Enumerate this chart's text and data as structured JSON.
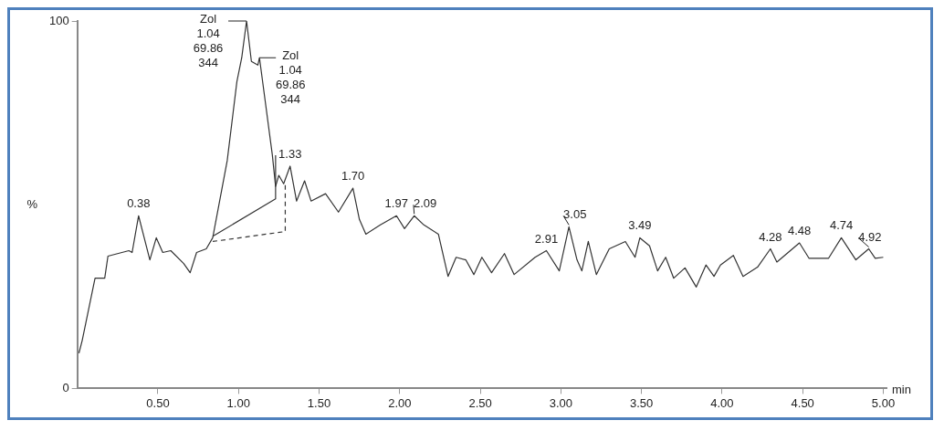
{
  "chart_data": {
    "type": "line",
    "xlabel": "min",
    "ylabel": "%",
    "xlim": [
      0,
      5.02
    ],
    "xticks": [
      {
        "value": 0.5,
        "label": "0.50"
      },
      {
        "value": 1,
        "label": "1.00"
      },
      {
        "value": 1.5,
        "label": "1.50"
      },
      {
        "value": 2,
        "label": "2.00"
      },
      {
        "value": 2.5,
        "label": "2.50"
      },
      {
        "value": 3,
        "label": "3.00"
      },
      {
        "value": 3.5,
        "label": "3.50"
      },
      {
        "value": 4,
        "label": "4.00"
      },
      {
        "value": 4.5,
        "label": "4.50"
      },
      {
        "value": 5,
        "label": "5.00"
      }
    ],
    "ylim": [
      0,
      100
    ],
    "yticks": [
      0,
      100
    ],
    "grid": false,
    "legend": false,
    "marker": "none",
    "series": [
      {
        "color": "#333333",
        "line_style": "solid",
        "x": [
          0.01,
          0.03,
          0.11,
          0.17,
          0.19,
          0.32,
          0.34,
          0.38,
          0.45,
          0.49,
          0.53,
          0.58,
          0.66,
          0.7,
          0.74,
          0.8,
          0.84,
          0.93,
          0.99,
          1.02,
          1.05,
          1.08,
          1.12,
          1.13,
          1.21,
          1.23,
          1.25,
          1.28,
          1.32,
          1.36,
          1.41,
          1.45,
          1.54,
          1.62,
          1.71,
          1.75,
          1.79,
          1.88,
          1.94,
          1.98,
          2.03,
          2.09,
          2.15,
          2.24,
          2.3,
          2.35,
          2.41,
          2.46,
          2.51,
          2.57,
          2.65,
          2.71,
          2.84,
          2.91,
          2.99,
          3.05,
          3.1,
          3.13,
          3.17,
          3.22,
          3.3,
          3.4,
          3.46,
          3.49,
          3.55,
          3.6,
          3.65,
          3.7,
          3.77,
          3.84,
          3.9,
          3.95,
          3.99,
          4.07,
          4.13,
          4.22,
          4.3,
          4.34,
          4.48,
          4.54,
          4.66,
          4.74,
          4.83,
          4.91,
          4.95,
          5.0
        ],
        "values": [
          9.6,
          13,
          30,
          30,
          36,
          37.5,
          37,
          47,
          35,
          41,
          37,
          37.5,
          34,
          31.5,
          37,
          38,
          41,
          62,
          83.5,
          90,
          100,
          89,
          88,
          90,
          63.5,
          55,
          58,
          55.7,
          60.5,
          51,
          56.5,
          51,
          53,
          48,
          54.5,
          46,
          42,
          44.5,
          46,
          47,
          43.5,
          47,
          44.5,
          42,
          30.5,
          35.7,
          35,
          31,
          35.7,
          31.5,
          36.7,
          31,
          35.7,
          37.5,
          32,
          44,
          35,
          32,
          40,
          31,
          38,
          40,
          35.7,
          41,
          38.8,
          32,
          35.7,
          30,
          32.8,
          27.6,
          33.6,
          30.5,
          33.6,
          36.2,
          30.5,
          33,
          38,
          34.4,
          39.6,
          35.4,
          35.4,
          41,
          35,
          38,
          35.4,
          35.7
        ]
      },
      {
        "color": "#333333",
        "line_style": "solid",
        "x": [
          0.84,
          1.23,
          1.23
        ],
        "values": [
          41.4,
          51.6,
          63.5
        ]
      },
      {
        "color": "#333333",
        "line_style": "dashed",
        "x": [
          0.84,
          1.29,
          1.29
        ],
        "values": [
          40,
          42.7,
          55.7
        ]
      }
    ],
    "annotations": [
      {
        "text": "0.38",
        "x": 0.38,
        "y": 47
      },
      {
        "text": "Zol\n1.04\n69.86\n344",
        "x": 1.05,
        "y": 100
      },
      {
        "text": "Zol\n1.04\n69.86\n344",
        "x": 1.13,
        "y": 90
      },
      {
        "text": "1.33",
        "x": 1.32,
        "y": 60.5
      },
      {
        "text": "1.70",
        "x": 1.71,
        "y": 54.5
      },
      {
        "text": "1.97",
        "x": 1.98,
        "y": 47
      },
      {
        "text": "2.09",
        "x": 2.09,
        "y": 47
      },
      {
        "text": "2.91",
        "x": 2.91,
        "y": 37.5
      },
      {
        "text": "3.05",
        "x": 3.05,
        "y": 44
      },
      {
        "text": "3.49",
        "x": 3.49,
        "y": 41
      },
      {
        "text": "4.28",
        "x": 4.3,
        "y": 38
      },
      {
        "text": "4.48",
        "x": 4.48,
        "y": 39.6
      },
      {
        "text": "4.74",
        "x": 4.74,
        "y": 41
      },
      {
        "text": "4.92",
        "x": 4.91,
        "y": 38
      }
    ]
  }
}
